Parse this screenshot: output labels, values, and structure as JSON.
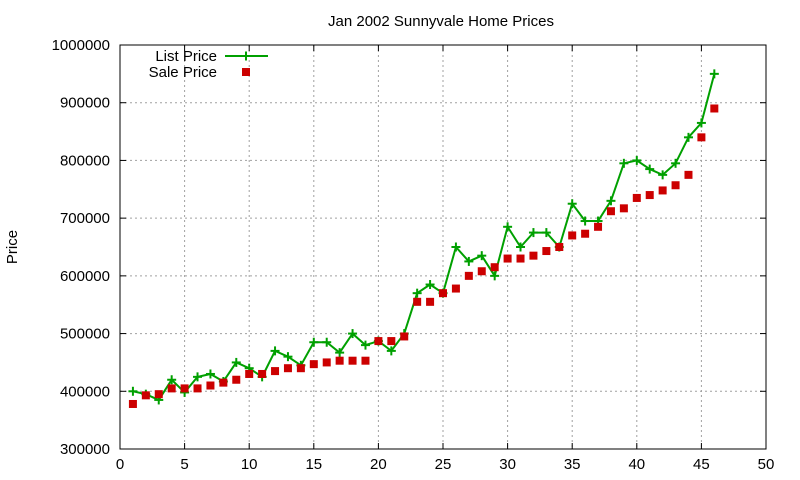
{
  "chart_data": {
    "type": "line",
    "title": "Jan 2002 Sunnyvale Home Prices",
    "xlabel": "",
    "ylabel": "Price",
    "xlim": [
      0,
      50
    ],
    "ylim": [
      300000,
      1000000
    ],
    "x_ticks": [
      0,
      5,
      10,
      15,
      20,
      25,
      30,
      35,
      40,
      45,
      50
    ],
    "y_ticks": [
      300000,
      400000,
      500000,
      600000,
      700000,
      800000,
      900000,
      1000000
    ],
    "grid": true,
    "legend_position": "top-left",
    "series": [
      {
        "name": "List Price",
        "style": "line-with-plus-markers",
        "color": "#00a000",
        "x": [
          1,
          2,
          3,
          4,
          5,
          6,
          7,
          8,
          9,
          10,
          11,
          12,
          13,
          14,
          15,
          16,
          17,
          18,
          19,
          20,
          21,
          22,
          23,
          24,
          25,
          26,
          27,
          28,
          29,
          30,
          31,
          32,
          33,
          34,
          35,
          36,
          37,
          38,
          39,
          40,
          41,
          42,
          43,
          44,
          45,
          46
        ],
        "values": [
          400000,
          395000,
          385000,
          420000,
          398000,
          425000,
          430000,
          417000,
          450000,
          440000,
          425000,
          470000,
          460000,
          445000,
          485000,
          485000,
          467000,
          500000,
          480000,
          487000,
          470000,
          500000,
          570000,
          585000,
          570000,
          650000,
          625000,
          635000,
          600000,
          685000,
          650000,
          675000,
          675000,
          650000,
          725000,
          695000,
          695000,
          730000,
          795000,
          800000,
          785000,
          775000,
          795000,
          840000,
          865000,
          950000
        ]
      },
      {
        "name": "Sale Price",
        "style": "square-markers",
        "color": "#cc0000",
        "x": [
          1,
          2,
          3,
          4,
          5,
          6,
          7,
          8,
          9,
          10,
          11,
          12,
          13,
          14,
          15,
          16,
          17,
          18,
          19,
          20,
          21,
          22,
          23,
          24,
          25,
          26,
          27,
          28,
          29,
          30,
          31,
          32,
          33,
          34,
          35,
          36,
          37,
          38,
          39,
          40,
          41,
          42,
          43,
          44,
          45,
          46
        ],
        "values": [
          378000,
          393000,
          395000,
          405000,
          405000,
          405000,
          410000,
          415000,
          420000,
          430000,
          430000,
          435000,
          440000,
          440000,
          447000,
          450000,
          453000,
          453000,
          453000,
          487000,
          487000,
          495000,
          555000,
          555000,
          570000,
          578000,
          600000,
          608000,
          615000,
          630000,
          630000,
          635000,
          643000,
          650000,
          670000,
          673000,
          685000,
          712000,
          717000,
          735000,
          740000,
          748000,
          757000,
          775000,
          840000,
          890000
        ]
      }
    ]
  }
}
